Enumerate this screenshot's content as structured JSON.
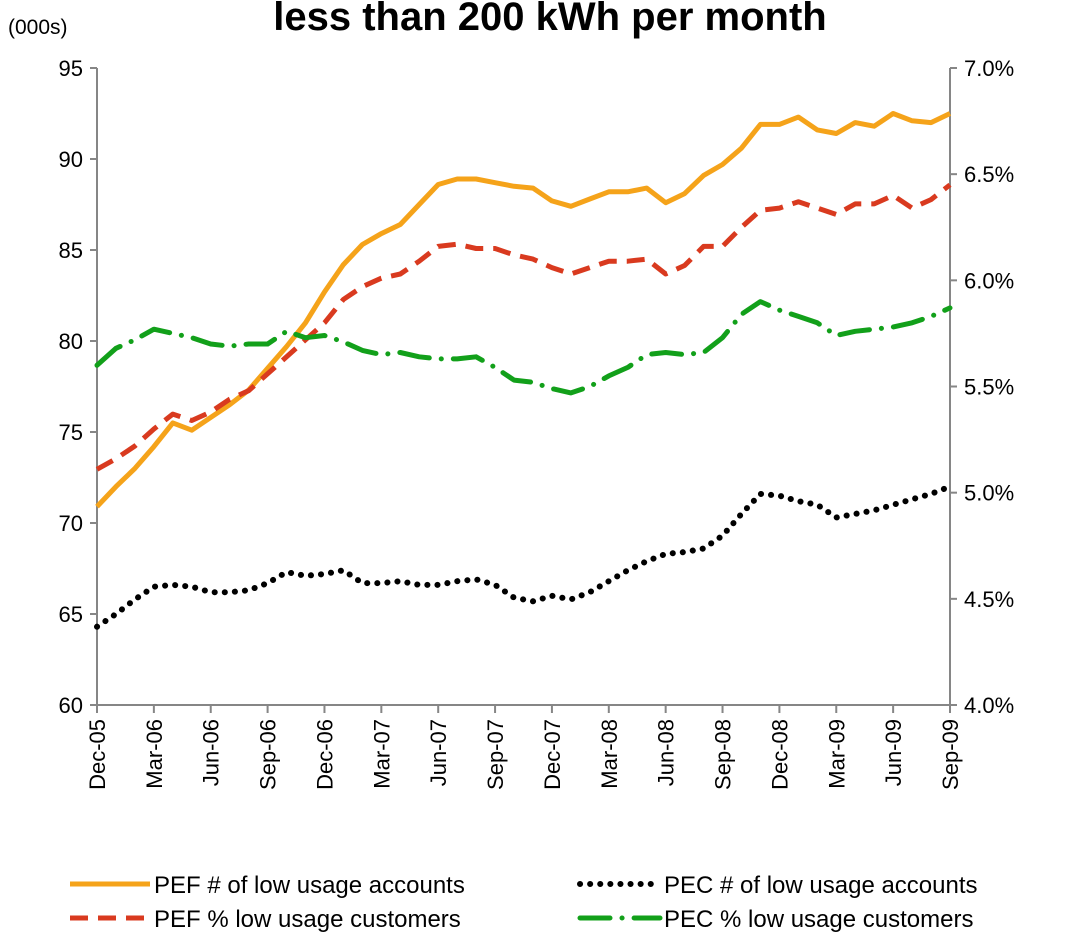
{
  "chart_data": {
    "type": "line",
    "title": "less than 200 kWh per month",
    "y_axis_label": "(000s)",
    "categories": [
      "Dec-05",
      null,
      null,
      "Mar-06",
      null,
      null,
      "Jun-06",
      null,
      null,
      "Sep-06",
      null,
      null,
      "Dec-06",
      null,
      null,
      "Mar-07",
      null,
      null,
      "Jun-07",
      null,
      null,
      "Sep-07",
      null,
      null,
      "Dec-07",
      null,
      null,
      "Mar-08",
      null,
      null,
      "Jun-08",
      null,
      null,
      "Sep-08",
      null,
      null,
      "Dec-08",
      null,
      null,
      "Mar-09",
      null,
      null,
      "Jun-09",
      null,
      null,
      "Sep-09"
    ],
    "ylim": [
      60,
      95
    ],
    "yticks": [
      60,
      65,
      70,
      75,
      80,
      85,
      90,
      95
    ],
    "y2lim": [
      4.0,
      7.0
    ],
    "y2ticks": [
      {
        "value": 4.0,
        "label": "4.0%"
      },
      {
        "value": 4.5,
        "label": "4.5%"
      },
      {
        "value": 5.0,
        "label": "5.0%"
      },
      {
        "value": 5.5,
        "label": "5.5%"
      },
      {
        "value": 6.0,
        "label": "6.0%"
      },
      {
        "value": 6.5,
        "label": "6.5%"
      },
      {
        "value": 7.0,
        "label": "7.0%"
      }
    ],
    "grid": false,
    "legend": "bottom",
    "series": [
      {
        "name": "PEF # of low usage accounts",
        "color": "#f5a31a",
        "style": "solid",
        "axis": "y",
        "values": [
          70.9,
          72,
          73,
          74.2,
          75.5,
          75.1,
          75.8,
          76.5,
          77.3,
          78.5,
          79.7,
          81,
          82.7,
          84.2,
          85.3,
          85.9,
          86.4,
          87.5,
          88.6,
          88.9,
          88.9,
          88.7,
          88.5,
          88.4,
          87.7,
          87.4,
          87.8,
          88.2,
          88.2,
          88.4,
          87.6,
          88.1,
          89.1,
          89.7,
          90.6,
          91.9,
          91.9,
          92.3,
          91.6,
          91.4,
          92,
          91.8,
          92.5,
          92.1,
          92,
          92.5
        ]
      },
      {
        "name": "PEC # of low usage accounts",
        "color": "#000000",
        "style": "dotted",
        "axis": "y",
        "values": [
          64.3,
          65,
          65.8,
          66.5,
          66.6,
          66.5,
          66.2,
          66.2,
          66.3,
          66.7,
          67.3,
          67.1,
          67.2,
          67.4,
          66.7,
          66.7,
          66.8,
          66.6,
          66.6,
          66.8,
          66.9,
          66.6,
          65.9,
          65.7,
          66,
          65.8,
          66.2,
          66.8,
          67.4,
          67.9,
          68.3,
          68.4,
          68.6,
          69.3,
          70.5,
          71.6,
          71.5,
          71.2,
          71,
          70.3,
          70.5,
          70.7,
          71,
          71.3,
          71.6,
          72
        ]
      },
      {
        "name": "PEF % low usage customers",
        "color": "#d93a1f",
        "style": "dashed",
        "axis": "y2",
        "values": [
          5.11,
          5.16,
          5.22,
          5.3,
          5.37,
          5.34,
          5.38,
          5.44,
          5.48,
          5.56,
          5.64,
          5.72,
          5.8,
          5.91,
          5.97,
          6.01,
          6.03,
          6.09,
          6.16,
          6.17,
          6.15,
          6.15,
          6.12,
          6.1,
          6.06,
          6.03,
          6.06,
          6.09,
          6.09,
          6.1,
          6.03,
          6.07,
          6.16,
          6.16,
          6.25,
          6.33,
          6.34,
          6.37,
          6.34,
          6.31,
          6.36,
          6.36,
          6.4,
          6.34,
          6.38,
          6.45
        ]
      },
      {
        "name": "PEC % low usage customers",
        "color": "#12a01a",
        "style": "dashdot",
        "axis": "y2",
        "values": [
          5.6,
          5.68,
          5.72,
          5.77,
          5.75,
          5.73,
          5.7,
          5.69,
          5.7,
          5.7,
          5.76,
          5.73,
          5.74,
          5.71,
          5.67,
          5.65,
          5.66,
          5.64,
          5.63,
          5.63,
          5.64,
          5.59,
          5.53,
          5.52,
          5.49,
          5.47,
          5.5,
          5.55,
          5.59,
          5.65,
          5.66,
          5.65,
          5.66,
          5.73,
          5.84,
          5.9,
          5.86,
          5.83,
          5.8,
          5.74,
          5.76,
          5.77,
          5.78,
          5.8,
          5.83,
          5.87
        ]
      }
    ]
  }
}
